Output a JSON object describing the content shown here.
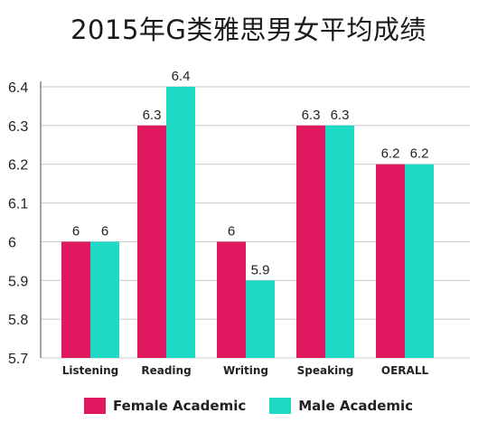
{
  "chart_data": {
    "type": "bar",
    "title": "2015年G类雅思男女平均成绩",
    "categories": [
      "Listening",
      "Reading",
      "Writing",
      "Speaking",
      "OERALL"
    ],
    "series": [
      {
        "name": "Female Academic",
        "color": "#e0185f",
        "values": [
          6,
          6.3,
          6,
          6.3,
          6.2
        ],
        "labels": [
          "6",
          "6.3",
          "6",
          "6.3",
          "6.2"
        ]
      },
      {
        "name": "Male Academic",
        "color": "#1ed9c6",
        "values": [
          6,
          6.4,
          5.9,
          6.3,
          6.2
        ],
        "labels": [
          "6",
          "6.4",
          "5.9",
          "6.3",
          "6.2"
        ]
      }
    ],
    "ylim": [
      5.7,
      6.4
    ],
    "yticks": [
      "5.7",
      "5.8",
      "5.9",
      "6",
      "6.1",
      "6.2",
      "6.3",
      "6.4"
    ],
    "grid": true,
    "legend_position": "bottom"
  }
}
